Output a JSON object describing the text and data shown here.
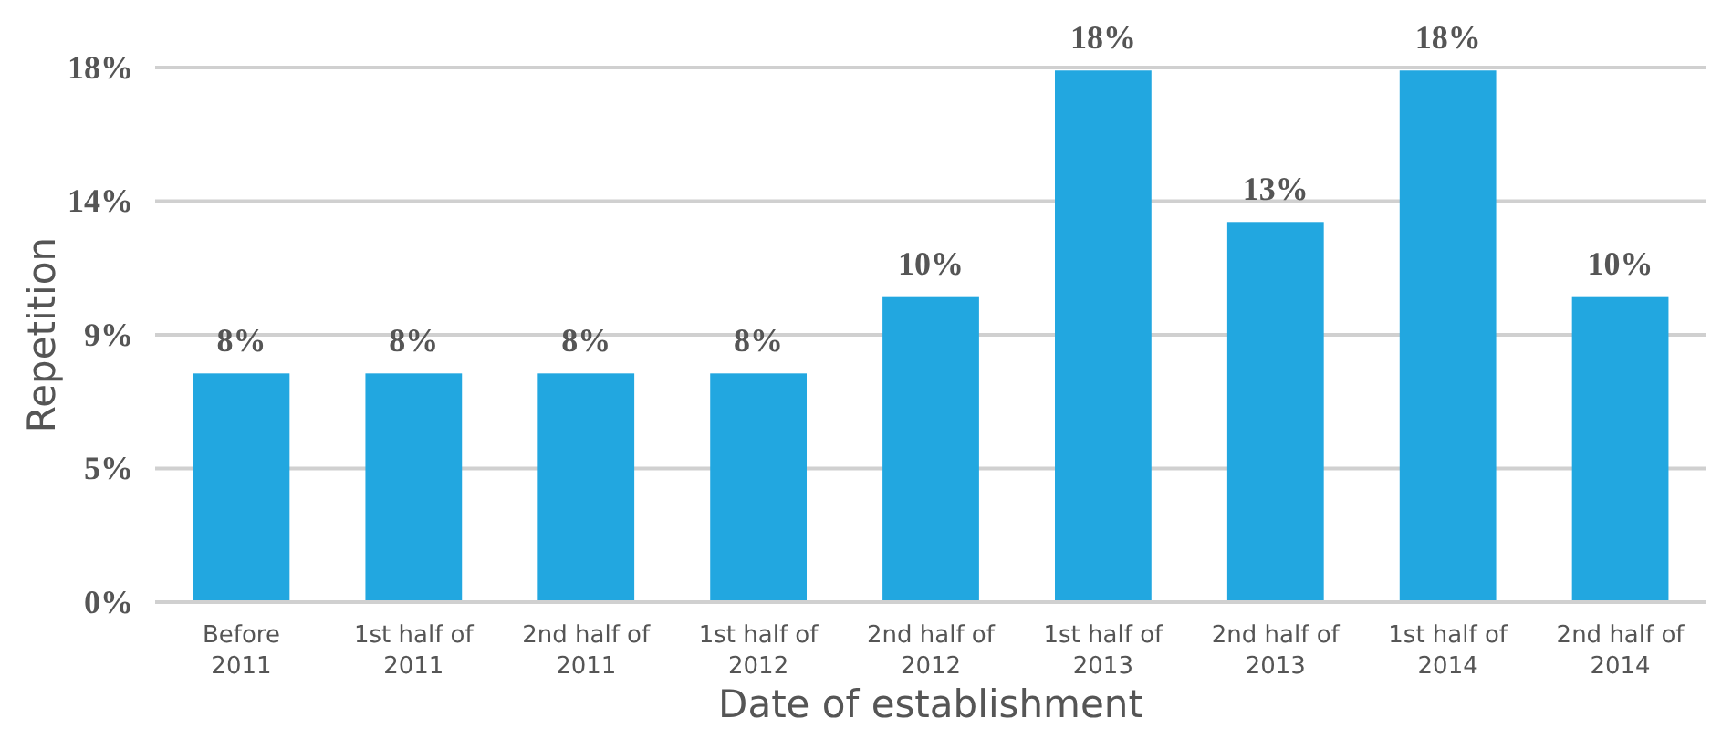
{
  "chart_data": {
    "type": "bar",
    "xlabel": "Date of establishment",
    "ylabel": "Repetition",
    "categories": [
      "Before 2011",
      "1st half of 2011",
      "2nd half of 2011",
      "1st half of 2012",
      "2nd half of 2012",
      "1st half of 2013",
      "2nd half of 2013",
      "1st half of 2014",
      "2nd half of 2014"
    ],
    "values": [
      7.7,
      7.7,
      7.7,
      7.7,
      10.3,
      17.9,
      12.8,
      17.9,
      10.3
    ],
    "value_labels": [
      "8%",
      "8%",
      "8%",
      "8%",
      "10%",
      "18%",
      "13%",
      "18%",
      "10%"
    ],
    "color": "#22a7e0",
    "ylim": [
      0,
      18
    ],
    "yticks": [
      {
        "value": 0,
        "label": "0%"
      },
      {
        "value": 4.5,
        "label": "5%"
      },
      {
        "value": 9,
        "label": "9%"
      },
      {
        "value": 13.5,
        "label": "14%"
      },
      {
        "value": 18,
        "label": "18%"
      }
    ],
    "grid": "y"
  }
}
